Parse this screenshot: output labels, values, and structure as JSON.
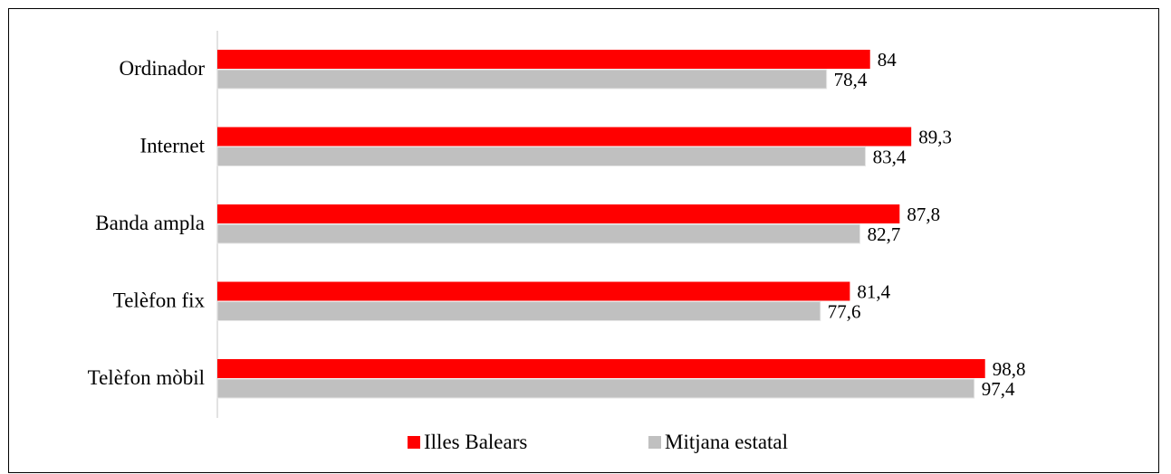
{
  "chart_data": {
    "type": "bar",
    "orientation": "horizontal",
    "categories": [
      "Ordinador",
      "Internet",
      "Banda ampla",
      "Telèfon fix",
      "Telèfon mòbil"
    ],
    "series": [
      {
        "name": "Illes Balears",
        "color": "#ff0000",
        "values": [
          84,
          89.3,
          87.8,
          81.4,
          98.8
        ],
        "labels": [
          "84",
          "89,3",
          "87,8",
          "81,4",
          "98,8"
        ]
      },
      {
        "name": "Mitjana estatal",
        "color": "#c0c0c0",
        "values": [
          78.4,
          83.4,
          82.7,
          77.6,
          97.4
        ],
        "labels": [
          "78,4",
          "83,4",
          "82,7",
          "77,6",
          "97,4"
        ]
      }
    ],
    "xlim": [
      0,
      100
    ],
    "grid": false,
    "legend": "bottom"
  }
}
